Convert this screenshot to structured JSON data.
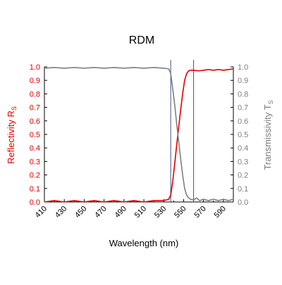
{
  "chart_data": {
    "type": "line",
    "title": "RDM",
    "xlabel": "Wavelength (nm)",
    "ylabel_left": "Reflectivity R",
    "ylabel_left_sub": "S",
    "ylabel_right": "Transmissivity T",
    "ylabel_right_sub": "S",
    "xlim": [
      410,
      600
    ],
    "ylim": [
      0,
      1
    ],
    "x_ticks": [
      "410",
      "430",
      "450",
      "470",
      "490",
      "510",
      "530",
      "550",
      "570",
      "590"
    ],
    "y_ticks_left": [
      "0.0",
      "0.1",
      "0.2",
      "0.3",
      "0.4",
      "0.5",
      "0.6",
      "0.7",
      "0.8",
      "0.9",
      "1.0"
    ],
    "y_ticks_right": [
      "0.0",
      "0.1",
      "0.2",
      "0.3",
      "0.4",
      "0.5",
      "0.6",
      "0.7",
      "0.8",
      "0.9",
      "1.0"
    ],
    "grid": false,
    "vertical_markers": [
      537,
      560
    ],
    "colors": {
      "reflectivity": "#e00000",
      "transmissivity": "#7f7f7f",
      "markers": "#3a4f8f",
      "axis": "#000000"
    },
    "series": [
      {
        "axis": "left",
        "x": [
          410,
          420,
          430,
          440,
          450,
          460,
          470,
          480,
          490,
          500,
          510,
          520,
          530,
          535,
          537,
          539,
          541,
          543,
          545,
          547,
          549,
          551,
          553,
          555,
          557,
          560,
          565,
          570,
          575,
          580,
          585,
          590,
          595,
          600
        ],
        "values": [
          0.0,
          0.01,
          0.0,
          0.01,
          0.0,
          0.01,
          0.0,
          0.01,
          0.0,
          0.01,
          0.0,
          0.01,
          0.01,
          0.02,
          0.05,
          0.15,
          0.28,
          0.42,
          0.55,
          0.68,
          0.8,
          0.9,
          0.95,
          0.97,
          0.975,
          0.975,
          0.97,
          0.975,
          0.98,
          0.975,
          0.98,
          0.975,
          0.98,
          0.985
        ]
      },
      {
        "axis": "right",
        "x": [
          410,
          420,
          430,
          440,
          450,
          460,
          470,
          480,
          490,
          500,
          510,
          520,
          530,
          535,
          537,
          539,
          541,
          543,
          545,
          547,
          549,
          551,
          553,
          555,
          557,
          560,
          563,
          566,
          570,
          575,
          580,
          585,
          590,
          595,
          600
        ],
        "values": [
          0.99,
          0.995,
          0.99,
          0.995,
          0.99,
          0.995,
          0.99,
          0.995,
          0.99,
          0.995,
          0.99,
          0.995,
          0.99,
          0.985,
          0.95,
          0.84,
          0.72,
          0.58,
          0.45,
          0.32,
          0.2,
          0.1,
          0.05,
          0.03,
          0.02,
          0.015,
          0.03,
          0.01,
          0.02,
          0.01,
          0.02,
          0.01,
          0.02,
          0.01,
          0.02
        ]
      }
    ]
  }
}
